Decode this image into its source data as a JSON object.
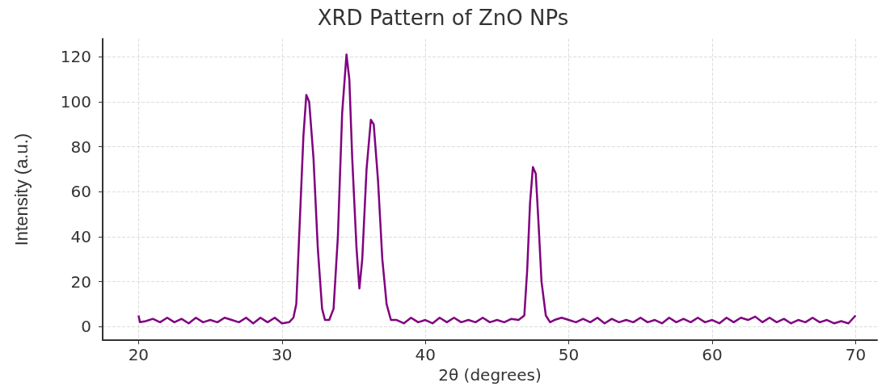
{
  "chart_data": {
    "type": "line",
    "title": "XRD Pattern of ZnO NPs",
    "xlabel": "2θ (degrees)",
    "ylabel": "Intensity (a.u.)",
    "xlim": [
      17.5,
      71.5
    ],
    "xticks": [
      20,
      30,
      40,
      50,
      60,
      70
    ],
    "ylim": [
      -6,
      128
    ],
    "yticks": [
      0,
      20,
      40,
      60,
      80,
      100,
      120
    ],
    "grid": true,
    "marker": "none",
    "line_style": "solid",
    "series": [
      {
        "color": "#800080",
        "x": [
          20,
          20.1,
          20.5,
          21,
          21.5,
          22,
          22.5,
          23,
          23.5,
          24,
          24.5,
          25,
          25.5,
          26,
          26.5,
          27,
          27.5,
          28,
          28.5,
          29,
          29.5,
          30,
          30.5,
          30.8,
          31.0,
          31.2,
          31.5,
          31.7,
          31.9,
          32.2,
          32.5,
          32.8,
          33.0,
          33.3,
          33.6,
          33.9,
          34.2,
          34.5,
          34.7,
          34.9,
          35.2,
          35.4,
          35.6,
          35.9,
          36.2,
          36.4,
          36.7,
          37.0,
          37.3,
          37.6,
          38,
          38.5,
          39,
          39.5,
          40,
          40.5,
          41,
          41.5,
          42,
          42.5,
          43,
          43.5,
          44,
          44.5,
          45,
          45.5,
          46,
          46.5,
          46.9,
          47.1,
          47.3,
          47.5,
          47.7,
          47.9,
          48.1,
          48.4,
          48.7,
          49,
          49.5,
          50,
          50.5,
          51,
          51.5,
          52,
          52.5,
          53,
          53.5,
          54,
          54.5,
          55,
          55.5,
          56,
          56.5,
          57,
          57.5,
          58,
          58.5,
          59,
          59.5,
          60,
          60.5,
          61,
          61.5,
          62,
          62.5,
          63,
          63.5,
          64,
          64.5,
          65,
          65.5,
          66,
          66.5,
          67,
          67.5,
          68,
          68.5,
          69,
          69.5,
          70
        ],
        "values": [
          5,
          2,
          2.5,
          3.5,
          2,
          4,
          2,
          3.5,
          1.5,
          4,
          2,
          3,
          2,
          4,
          3,
          2,
          4,
          1.5,
          4,
          2,
          4,
          1.5,
          2,
          4,
          10,
          40,
          85,
          103,
          100,
          75,
          35,
          8,
          3,
          3,
          8,
          40,
          95,
          121,
          110,
          75,
          35,
          17,
          30,
          70,
          92,
          90,
          65,
          30,
          10,
          3,
          3,
          1.5,
          4,
          2,
          3,
          1.5,
          4,
          2,
          4,
          2,
          3,
          2,
          4,
          2,
          3,
          2,
          3.5,
          3,
          5,
          25,
          55,
          71,
          68,
          45,
          20,
          5,
          2,
          3,
          4,
          3,
          2,
          3.5,
          2,
          4,
          1.5,
          3.5,
          2,
          3,
          2,
          4,
          2,
          3,
          1.5,
          4,
          2,
          3.5,
          2,
          4,
          2,
          3,
          1.5,
          4,
          2,
          4,
          3,
          4.5,
          2,
          4,
          2,
          3.5,
          1.5,
          3,
          2,
          4,
          2,
          3,
          1.5,
          2.5,
          1.5,
          5
        ]
      }
    ]
  }
}
